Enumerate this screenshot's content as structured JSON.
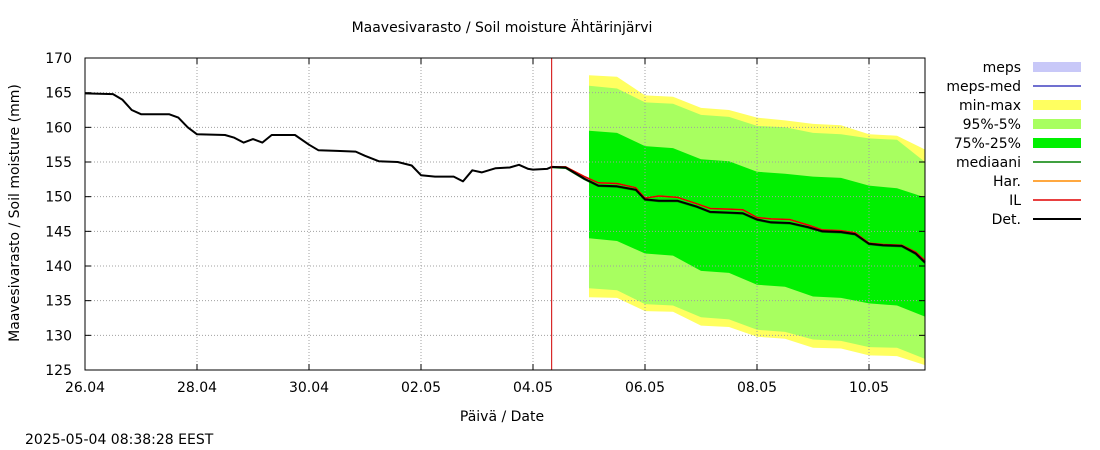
{
  "chart_data": {
    "type": "line",
    "title": "Maavesivarasto / Soil moisture   Ähtärinjärvi",
    "xlabel": "Päivä / Date",
    "ylabel": "Maavesivarasto / Soil moisture (mm)",
    "timestamp": "2025-05-04  08:38:28 EEST",
    "xlim": [
      "2025-04-26",
      "2025-05-11"
    ],
    "ylim": [
      125,
      170
    ],
    "x_ticks": [
      {
        "date": "2025-04-26",
        "label": "26.04"
      },
      {
        "date": "2025-04-28",
        "label": "28.04"
      },
      {
        "date": "2025-04-30",
        "label": "30.04"
      },
      {
        "date": "2025-05-02",
        "label": "02.05"
      },
      {
        "date": "2025-05-04",
        "label": "04.05"
      },
      {
        "date": "2025-05-06",
        "label": "06.05"
      },
      {
        "date": "2025-05-08",
        "label": "08.05"
      },
      {
        "date": "2025-05-10",
        "label": "10.05"
      }
    ],
    "y_ticks": [
      125,
      130,
      135,
      140,
      145,
      150,
      155,
      160,
      165,
      170
    ],
    "grid": true,
    "legend_placement": "right",
    "now_marker": "2025-05-04T08:00",
    "now_marker_color": "#d00000",
    "legend": [
      {
        "key": "meps",
        "label": "meps",
        "style": "band",
        "color": "#c8c8f8"
      },
      {
        "key": "meps_med",
        "label": "meps-med",
        "style": "line",
        "color": "#4040c0"
      },
      {
        "key": "min_max",
        "label": "min-max",
        "style": "band",
        "color": "#ffff60"
      },
      {
        "key": "p95_5",
        "label": "95%-5%",
        "style": "band",
        "color": "#a8ff60"
      },
      {
        "key": "p75_25",
        "label": "75%-25%",
        "style": "band",
        "color": "#00f000"
      },
      {
        "key": "mediaani",
        "label": "mediaani",
        "style": "line",
        "color": "#008000"
      },
      {
        "key": "har",
        "label": "Har.",
        "style": "line",
        "color": "#ff8c00"
      },
      {
        "key": "il",
        "label": "IL",
        "style": "line",
        "color": "#e00000"
      },
      {
        "key": "det",
        "label": "Det.",
        "style": "line",
        "color": "#000000"
      }
    ],
    "series": [
      {
        "key": "det",
        "name": "Det.",
        "points": [
          [
            "2025-04-26T00:00",
            164.9
          ],
          [
            "2025-04-26T12:00",
            164.8
          ],
          [
            "2025-04-26T16:00",
            164.0
          ],
          [
            "2025-04-26T20:00",
            162.5
          ],
          [
            "2025-04-27T00:00",
            161.9
          ],
          [
            "2025-04-27T12:00",
            161.9
          ],
          [
            "2025-04-27T16:00",
            161.4
          ],
          [
            "2025-04-27T20:00",
            160.0
          ],
          [
            "2025-04-28T00:00",
            159.0
          ],
          [
            "2025-04-28T12:00",
            158.9
          ],
          [
            "2025-04-28T16:00",
            158.5
          ],
          [
            "2025-04-28T20:00",
            157.8
          ],
          [
            "2025-04-29T00:00",
            158.3
          ],
          [
            "2025-04-29T04:00",
            157.8
          ],
          [
            "2025-04-29T08:00",
            158.9
          ],
          [
            "2025-04-29T18:00",
            158.9
          ],
          [
            "2025-04-30T00:00",
            157.5
          ],
          [
            "2025-04-30T04:00",
            156.7
          ],
          [
            "2025-04-30T12:00",
            156.6
          ],
          [
            "2025-04-30T20:00",
            156.5
          ],
          [
            "2025-05-01T00:00",
            155.9
          ],
          [
            "2025-05-01T06:00",
            155.1
          ],
          [
            "2025-05-01T14:00",
            155.0
          ],
          [
            "2025-05-01T20:00",
            154.5
          ],
          [
            "2025-05-02T00:00",
            153.1
          ],
          [
            "2025-05-02T06:00",
            152.9
          ],
          [
            "2025-05-02T14:00",
            152.9
          ],
          [
            "2025-05-02T18:00",
            152.2
          ],
          [
            "2025-05-02T22:00",
            153.8
          ],
          [
            "2025-05-03T02:00",
            153.5
          ],
          [
            "2025-05-03T08:00",
            154.1
          ],
          [
            "2025-05-03T14:00",
            154.2
          ],
          [
            "2025-05-03T18:00",
            154.6
          ],
          [
            "2025-05-03T22:00",
            154.0
          ],
          [
            "2025-05-04T00:00",
            153.9
          ],
          [
            "2025-05-04T06:00",
            154.0
          ],
          [
            "2025-05-04T08:00",
            154.3
          ],
          [
            "2025-05-04T14:00",
            154.2
          ],
          [
            "2025-05-04T22:00",
            152.6
          ],
          [
            "2025-05-05T04:00",
            151.6
          ],
          [
            "2025-05-05T12:00",
            151.5
          ],
          [
            "2025-05-05T20:00",
            151.0
          ],
          [
            "2025-05-06T00:00",
            149.6
          ],
          [
            "2025-05-06T06:00",
            149.4
          ],
          [
            "2025-05-06T14:00",
            149.4
          ],
          [
            "2025-05-06T22:00",
            148.6
          ],
          [
            "2025-05-07T04:00",
            147.8
          ],
          [
            "2025-05-07T12:00",
            147.7
          ],
          [
            "2025-05-07T18:00",
            147.6
          ],
          [
            "2025-05-08T00:00",
            146.7
          ],
          [
            "2025-05-08T06:00",
            146.3
          ],
          [
            "2025-05-08T14:00",
            146.2
          ],
          [
            "2025-05-08T22:00",
            145.6
          ],
          [
            "2025-05-09T04:00",
            145.0
          ],
          [
            "2025-05-09T12:00",
            144.9
          ],
          [
            "2025-05-09T18:00",
            144.6
          ],
          [
            "2025-05-10T00:00",
            143.2
          ],
          [
            "2025-05-10T06:00",
            143.0
          ],
          [
            "2025-05-10T14:00",
            142.9
          ],
          [
            "2025-05-10T20:00",
            141.8
          ],
          [
            "2025-05-11T00:00",
            140.5
          ]
        ]
      },
      {
        "key": "il",
        "name": "IL",
        "points": [
          [
            "2025-05-04T08:00",
            154.3
          ],
          [
            "2025-05-04T14:00",
            154.3
          ],
          [
            "2025-05-04T22:00",
            152.9
          ],
          [
            "2025-05-05T04:00",
            152.0
          ],
          [
            "2025-05-05T12:00",
            151.9
          ],
          [
            "2025-05-05T20:00",
            151.3
          ],
          [
            "2025-05-06T00:00",
            149.8
          ],
          [
            "2025-05-06T06:00",
            150.1
          ],
          [
            "2025-05-06T14:00",
            149.9
          ],
          [
            "2025-05-06T22:00",
            149.0
          ],
          [
            "2025-05-07T04:00",
            148.3
          ],
          [
            "2025-05-07T12:00",
            148.2
          ],
          [
            "2025-05-07T18:00",
            148.1
          ],
          [
            "2025-05-08T00:00",
            147.0
          ],
          [
            "2025-05-08T06:00",
            146.8
          ],
          [
            "2025-05-08T14:00",
            146.7
          ],
          [
            "2025-05-08T22:00",
            145.9
          ],
          [
            "2025-05-09T04:00",
            145.2
          ],
          [
            "2025-05-09T12:00",
            145.1
          ],
          [
            "2025-05-09T18:00",
            144.8
          ],
          [
            "2025-05-10T00:00",
            143.3
          ],
          [
            "2025-05-10T06:00",
            143.1
          ],
          [
            "2025-05-10T14:00",
            143.0
          ],
          [
            "2025-05-10T20:00",
            142.0
          ],
          [
            "2025-05-11T00:00",
            140.8
          ]
        ]
      },
      {
        "key": "har",
        "name": "Har.",
        "points": [
          [
            "2025-05-04T08:00",
            154.3
          ],
          [
            "2025-05-04T14:00",
            154.3
          ],
          [
            "2025-05-04T22:00",
            152.9
          ],
          [
            "2025-05-05T04:00",
            152.0
          ],
          [
            "2025-05-05T12:00",
            151.9
          ],
          [
            "2025-05-05T20:00",
            151.3
          ],
          [
            "2025-05-06T00:00",
            149.8
          ],
          [
            "2025-05-06T06:00",
            150.1
          ],
          [
            "2025-05-06T14:00",
            149.9
          ],
          [
            "2025-05-06T22:00",
            149.0
          ],
          [
            "2025-05-07T04:00",
            148.3
          ],
          [
            "2025-05-07T12:00",
            148.2
          ],
          [
            "2025-05-07T18:00",
            148.1
          ],
          [
            "2025-05-08T00:00",
            147.0
          ],
          [
            "2025-05-08T06:00",
            146.8
          ],
          [
            "2025-05-08T14:00",
            146.7
          ],
          [
            "2025-05-08T22:00",
            145.9
          ],
          [
            "2025-05-09T04:00",
            145.2
          ],
          [
            "2025-05-09T12:00",
            145.1
          ],
          [
            "2025-05-09T18:00",
            144.8
          ],
          [
            "2025-05-10T00:00",
            143.3
          ],
          [
            "2025-05-10T06:00",
            143.1
          ],
          [
            "2025-05-10T14:00",
            143.0
          ],
          [
            "2025-05-10T20:00",
            142.0
          ],
          [
            "2025-05-11T00:00",
            140.8
          ]
        ]
      },
      {
        "key": "mediaani",
        "name": "mediaani",
        "points": [
          [
            "2025-05-04T08:00",
            154.2
          ],
          [
            "2025-05-04T14:00",
            154.1
          ],
          [
            "2025-05-04T22:00",
            152.5
          ],
          [
            "2025-05-05T04:00",
            151.5
          ],
          [
            "2025-05-05T12:00",
            151.4
          ],
          [
            "2025-05-05T20:00",
            150.9
          ],
          [
            "2025-05-06T00:00",
            149.5
          ],
          [
            "2025-05-06T06:00",
            149.3
          ],
          [
            "2025-05-06T14:00",
            149.3
          ],
          [
            "2025-05-06T22:00",
            148.5
          ],
          [
            "2025-05-07T04:00",
            147.7
          ],
          [
            "2025-05-07T12:00",
            147.6
          ],
          [
            "2025-05-07T18:00",
            147.5
          ],
          [
            "2025-05-08T00:00",
            146.6
          ],
          [
            "2025-05-08T06:00",
            146.2
          ],
          [
            "2025-05-08T14:00",
            146.1
          ],
          [
            "2025-05-08T22:00",
            145.5
          ],
          [
            "2025-05-09T04:00",
            144.9
          ],
          [
            "2025-05-09T12:00",
            144.8
          ],
          [
            "2025-05-09T18:00",
            144.5
          ],
          [
            "2025-05-10T00:00",
            143.1
          ],
          [
            "2025-05-10T06:00",
            142.9
          ],
          [
            "2025-05-10T14:00",
            142.8
          ],
          [
            "2025-05-10T20:00",
            141.7
          ],
          [
            "2025-05-11T00:00",
            140.4
          ]
        ]
      }
    ],
    "bands": [
      {
        "key": "min_max",
        "name": "min-max",
        "x": [
          "2025-05-05T00:00",
          "2025-05-05T12:00",
          "2025-05-06T00:00",
          "2025-05-06T12:00",
          "2025-05-07T00:00",
          "2025-05-07T12:00",
          "2025-05-08T00:00",
          "2025-05-08T12:00",
          "2025-05-09T00:00",
          "2025-05-09T12:00",
          "2025-05-10T00:00",
          "2025-05-10T12:00",
          "2025-05-11T00:00"
        ],
        "low": [
          135.5,
          135.4,
          133.5,
          133.4,
          131.4,
          131.2,
          129.8,
          129.5,
          128.2,
          128.1,
          127.1,
          127.0,
          125.7
        ],
        "high": [
          167.5,
          167.3,
          164.6,
          164.4,
          162.8,
          162.5,
          161.4,
          161.0,
          160.5,
          160.3,
          159.0,
          158.8,
          156.8
        ]
      },
      {
        "key": "p95_5",
        "name": "95%-5%",
        "x": [
          "2025-05-05T00:00",
          "2025-05-05T12:00",
          "2025-05-06T00:00",
          "2025-05-06T12:00",
          "2025-05-07T00:00",
          "2025-05-07T12:00",
          "2025-05-08T00:00",
          "2025-05-08T12:00",
          "2025-05-09T00:00",
          "2025-05-09T12:00",
          "2025-05-10T00:00",
          "2025-05-10T12:00",
          "2025-05-11T00:00"
        ],
        "low": [
          136.8,
          136.5,
          134.5,
          134.3,
          132.6,
          132.3,
          130.8,
          130.5,
          129.4,
          129.2,
          128.3,
          128.2,
          126.6
        ],
        "high": [
          166.0,
          165.6,
          163.6,
          163.4,
          161.8,
          161.5,
          160.2,
          160.0,
          159.2,
          159.0,
          158.4,
          158.2,
          155.0
        ]
      },
      {
        "key": "p75_25",
        "name": "75%-25%",
        "x": [
          "2025-05-05T00:00",
          "2025-05-05T12:00",
          "2025-05-06T00:00",
          "2025-05-06T12:00",
          "2025-05-07T00:00",
          "2025-05-07T12:00",
          "2025-05-08T00:00",
          "2025-05-08T12:00",
          "2025-05-09T00:00",
          "2025-05-09T12:00",
          "2025-05-10T00:00",
          "2025-05-10T12:00",
          "2025-05-11T00:00"
        ],
        "low": [
          144.0,
          143.6,
          141.8,
          141.5,
          139.3,
          139.0,
          137.3,
          137.0,
          135.6,
          135.4,
          134.6,
          134.3,
          132.7
        ],
        "high": [
          159.5,
          159.2,
          157.3,
          157.0,
          155.4,
          155.1,
          153.6,
          153.3,
          152.9,
          152.7,
          151.6,
          151.2,
          149.9
        ]
      }
    ]
  }
}
